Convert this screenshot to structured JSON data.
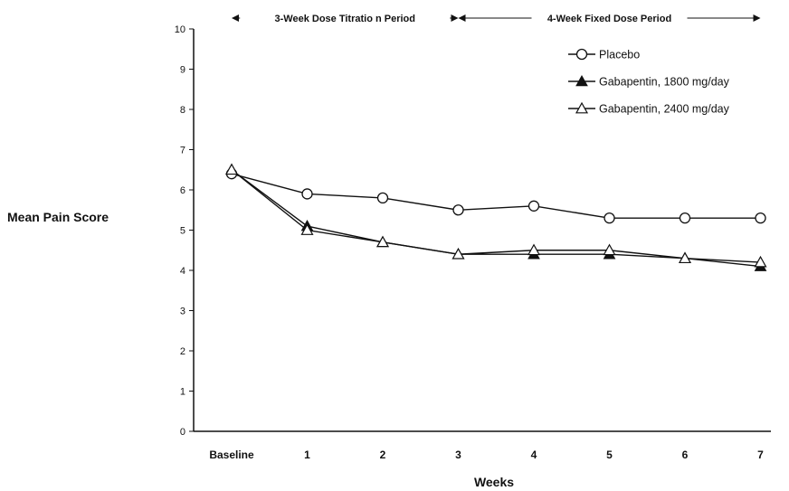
{
  "chart_data": {
    "type": "line",
    "xlabel": "Weeks",
    "ylabel": "Mean Pain Score",
    "ylim": [
      0,
      10
    ],
    "yticks": [
      "0",
      "1",
      "2",
      "3",
      "4",
      "5",
      "6",
      "7",
      "8",
      "9",
      "10"
    ],
    "categories": [
      "Baseline",
      "1",
      "2",
      "3",
      "4",
      "5",
      "6",
      "7"
    ],
    "periods": [
      {
        "label": "3-Week Dose Titratio  n Period",
        "from": "Baseline",
        "to": "3"
      },
      {
        "label": "4-Week Fixed Dose Period",
        "from": "3",
        "to": "7"
      }
    ],
    "legend_position": "top-right",
    "grid": false,
    "series": [
      {
        "name": "Placebo",
        "marker": "open-circle",
        "values": [
          6.4,
          5.9,
          5.8,
          5.5,
          5.6,
          5.3,
          5.3,
          5.3
        ]
      },
      {
        "name": "Gabapentin, 1800 mg/day",
        "marker": "filled-triangle",
        "values": [
          6.5,
          5.1,
          4.7,
          4.4,
          4.4,
          4.4,
          4.3,
          4.1
        ]
      },
      {
        "name": "Gabapentin, 2400 mg/day",
        "marker": "open-triangle",
        "values": [
          6.5,
          5.0,
          4.7,
          4.4,
          4.5,
          4.5,
          4.3,
          4.2
        ]
      }
    ]
  }
}
